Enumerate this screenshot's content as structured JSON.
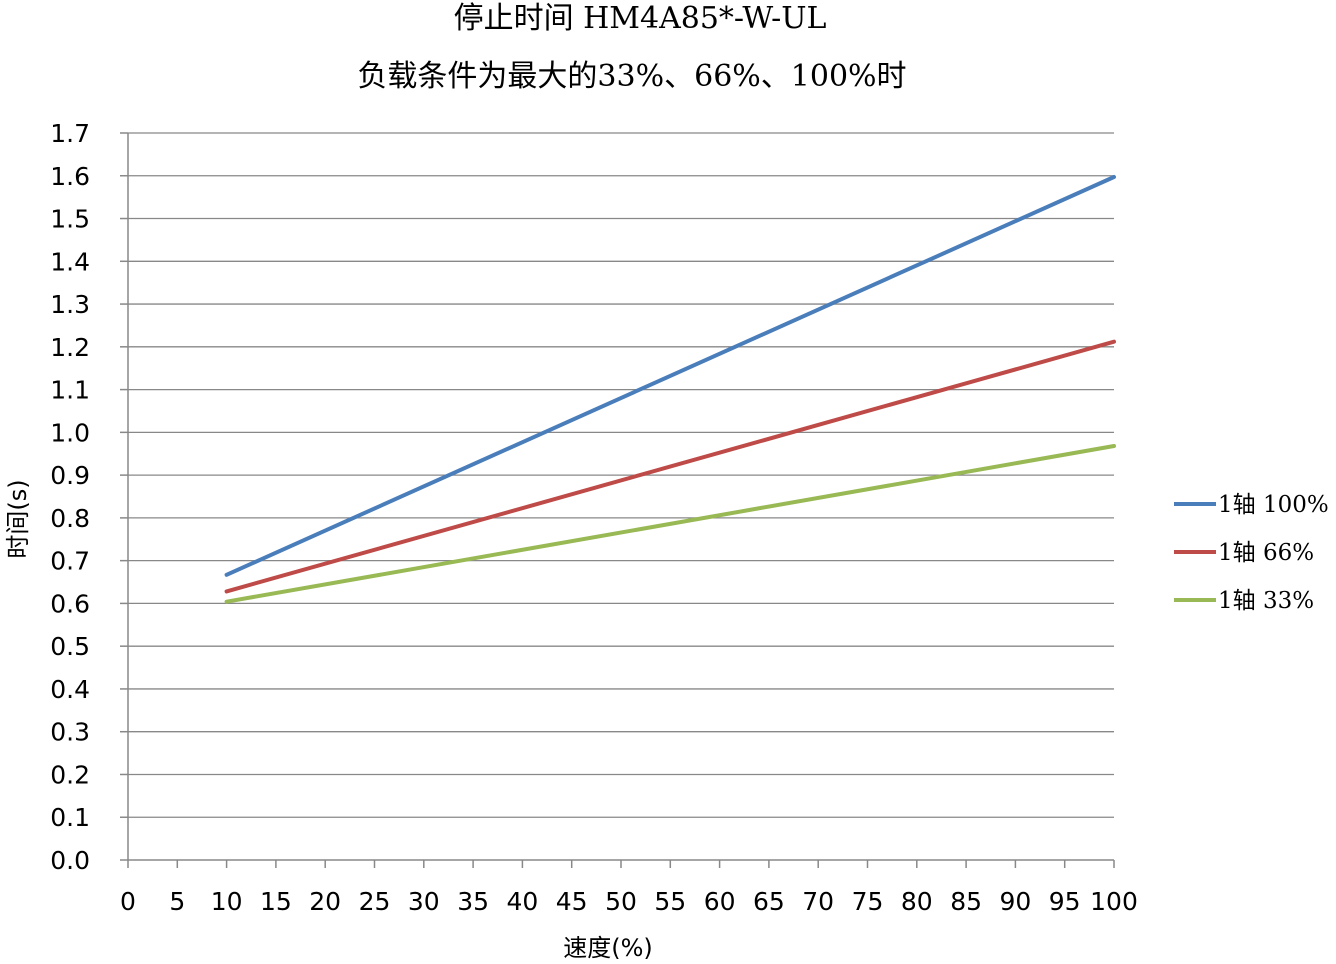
{
  "chart_data": {
    "type": "line",
    "title": "停止时间 HM4A85*-W-UL",
    "subtitle": "负载条件为最大的33%、66%、100%时",
    "xlabel": "速度(%)",
    "ylabel": "时间(s)",
    "xlim": [
      0,
      100
    ],
    "ylim": [
      0,
      1.7
    ],
    "x_ticks": [
      "0",
      "5",
      "10",
      "15",
      "20",
      "25",
      "30",
      "35",
      "40",
      "45",
      "50",
      "55",
      "60",
      "65",
      "70",
      "75",
      "80",
      "85",
      "90",
      "95",
      "100"
    ],
    "y_ticks": [
      "0.0",
      "0.1",
      "0.2",
      "0.3",
      "0.4",
      "0.5",
      "0.6",
      "0.7",
      "0.8",
      "0.9",
      "1.0",
      "1.1",
      "1.2",
      "1.3",
      "1.4",
      "1.5",
      "1.6",
      "1.7"
    ],
    "grid": "horizontal",
    "legend": "right",
    "series": [
      {
        "name": "1轴 100%",
        "color": "#4A7EBB",
        "x": [
          10,
          100
        ],
        "y": [
          0.667,
          1.597
        ]
      },
      {
        "name": "1轴 66%",
        "color": "#BE4B48",
        "x": [
          10,
          100
        ],
        "y": [
          0.628,
          1.212
        ]
      },
      {
        "name": "1轴 33%",
        "color": "#98B954",
        "x": [
          10,
          100
        ],
        "y": [
          0.604,
          0.968
        ]
      }
    ]
  }
}
